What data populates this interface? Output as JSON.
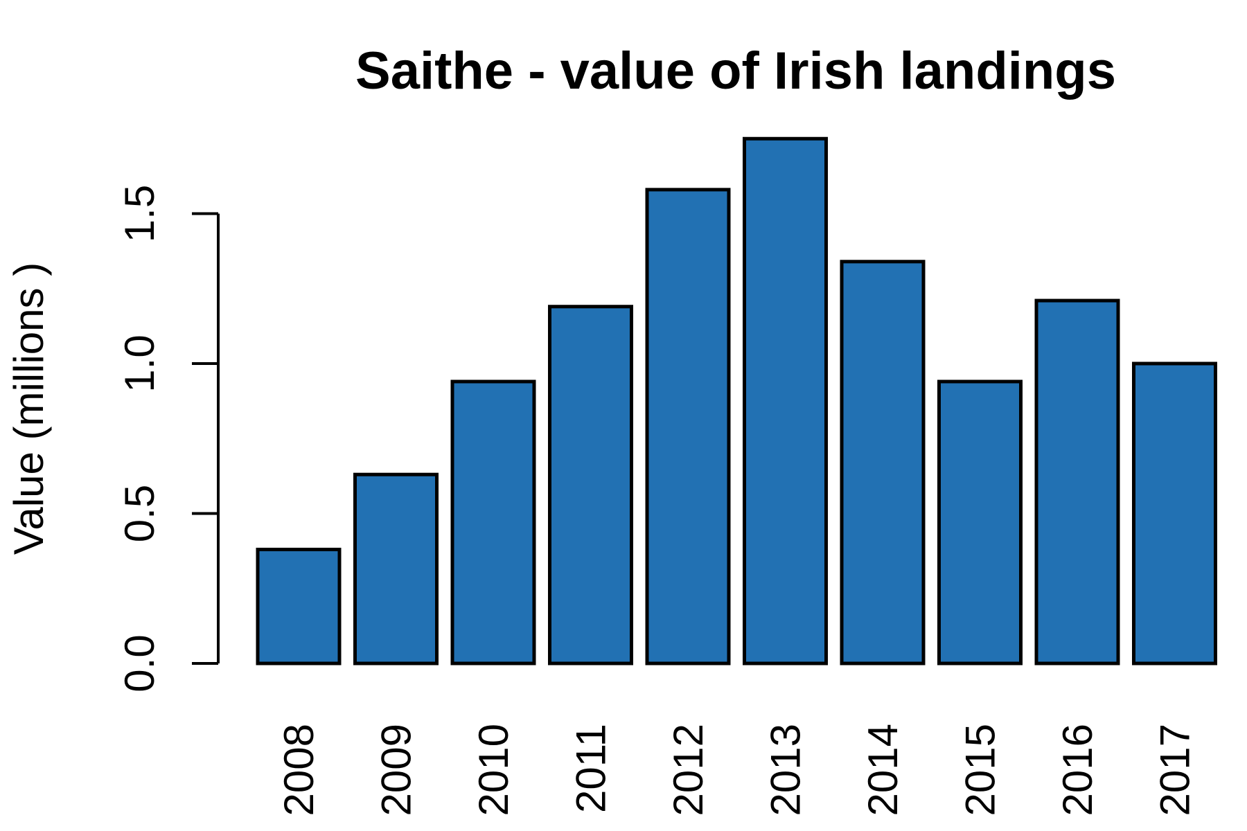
{
  "chart_data": {
    "type": "bar",
    "title": "Saithe - value of Irish landings",
    "xlabel": "",
    "ylabel": "Value (millions )",
    "categories": [
      "2008",
      "2009",
      "2010",
      "2011",
      "2012",
      "2013",
      "2014",
      "2015",
      "2016",
      "2017"
    ],
    "values": [
      0.38,
      0.63,
      0.94,
      1.19,
      1.58,
      1.75,
      1.34,
      0.94,
      1.21,
      1.0
    ],
    "ylim": [
      0,
      1.75
    ],
    "yticks": [
      0.0,
      0.5,
      1.0,
      1.5
    ],
    "ytick_labels": [
      "0.0",
      "0.5",
      "1.0",
      "1.5"
    ],
    "bar_color": "#2271b3",
    "grid": false,
    "legend": "none"
  }
}
